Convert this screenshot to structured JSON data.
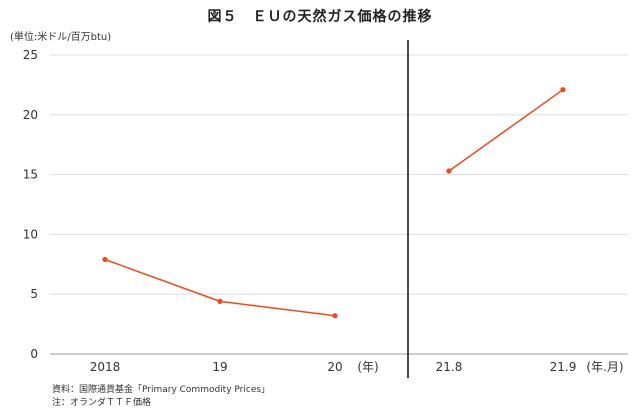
{
  "title": "図５　ＥＵの天然ガス価格の推移",
  "unit_label": "(単位:米ドル/百万btu)",
  "notes": [
    "資料：国際通貨基金「Primary Commodity Prices」",
    "注：オランダＴＴＦ価格"
  ],
  "colors": {
    "series": "#f04a1a",
    "grid": "#dddddd",
    "divider": "#111111"
  },
  "chart_data": {
    "type": "line",
    "ylim": [
      0,
      25
    ],
    "yticks": [
      "0",
      "5",
      "10",
      "15",
      "20",
      "25"
    ],
    "grid": true,
    "panels": [
      {
        "categories": [
          "2018",
          "19",
          "20"
        ],
        "values": [
          7.9,
          4.4,
          3.2
        ],
        "axis_unit": "(年)"
      },
      {
        "categories": [
          "21.8",
          "21.9"
        ],
        "values": [
          15.3,
          22.1
        ],
        "axis_unit": "(年.月)"
      }
    ]
  }
}
